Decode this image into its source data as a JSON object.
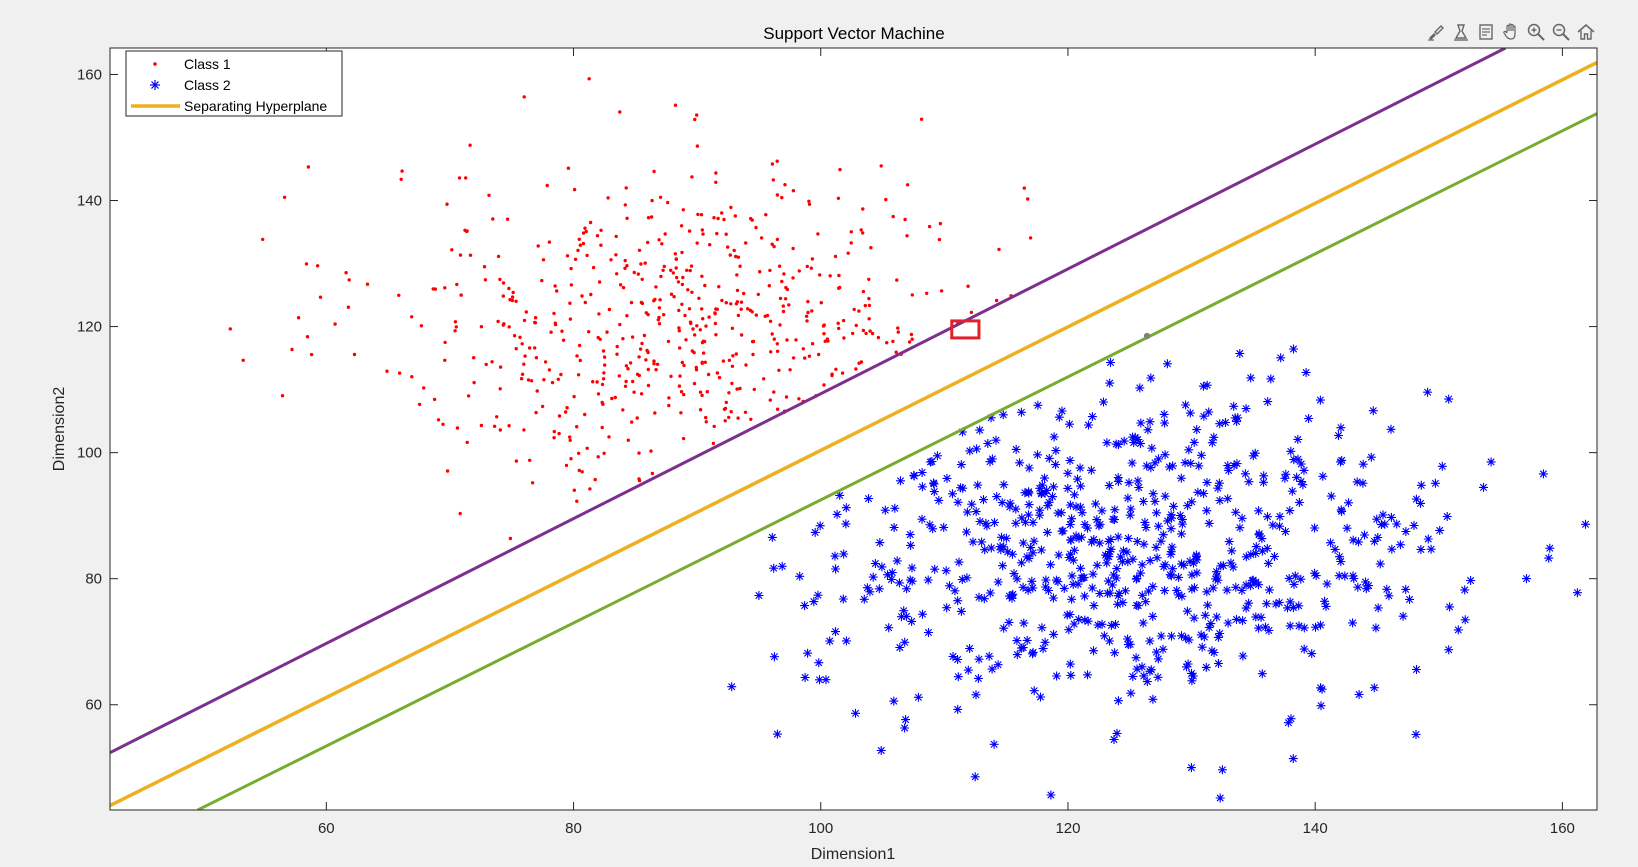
{
  "toolbar": {
    "icons": [
      "brush-icon",
      "data-tips-icon",
      "restore-view-icon",
      "pan-hand-icon",
      "zoom-in-icon",
      "zoom-out-icon",
      "home-icon"
    ]
  },
  "colors": {
    "figure_bg": "#f0f0f0",
    "axes_bg": "#ffffff",
    "class1": "#ff0000",
    "class2": "#0000ff",
    "hyperplane": "#edb120",
    "margin_upper": "#7e2f8e",
    "margin_lower": "#77ac30",
    "highlight_box": "#e0202a"
  },
  "chart_data": {
    "type": "scatter",
    "title": "Support Vector Machine",
    "xlabel": "Dimension1",
    "ylabel": "Dimension2",
    "xlim": [
      42.5,
      162.8
    ],
    "ylim": [
      43.3,
      164.2
    ],
    "xticks": [
      60,
      80,
      100,
      120,
      140,
      160
    ],
    "yticks": [
      60,
      80,
      100,
      120,
      140,
      160
    ],
    "grid": false,
    "legend": {
      "placement": "top-left",
      "entries": [
        {
          "label": "Class 1",
          "marker": "dot",
          "color": "#ff0000"
        },
        {
          "label": "Class 2",
          "marker": "asterisk",
          "color": "#0000ff"
        },
        {
          "label": "Separating Hyperplane",
          "marker": "line",
          "color": "#edb120"
        }
      ]
    },
    "lines": [
      {
        "name": "Separating Hyperplane",
        "role": "hyperplane",
        "color": "#edb120",
        "x": [
          42.5,
          162.8
        ],
        "y": [
          44.0,
          161.9
        ]
      },
      {
        "role": "margin-upper",
        "color": "#7e2f8e",
        "x": [
          42.5,
          155.4
        ],
        "y": [
          52.4,
          164.2
        ]
      },
      {
        "role": "margin-lower",
        "color": "#77ac30",
        "x": [
          49.6,
          162.8
        ],
        "y": [
          43.3,
          153.8
        ]
      }
    ],
    "support_vector_marker": {
      "x": 126.4,
      "y": 118.5,
      "color": "#808080"
    },
    "highlight_box": {
      "x": [
        110.6,
        112.8
      ],
      "y": [
        118.2,
        120.9
      ],
      "color": "#e0202a"
    },
    "class1_distribution": {
      "name": "Class 1",
      "n": 600,
      "mean": [
        90,
        120
      ],
      "std": [
        13,
        13
      ],
      "color": "#ff0000"
    },
    "class2_distribution": {
      "name": "Class 2",
      "n": 720,
      "mean": [
        125,
        85
      ],
      "std": [
        13,
        13
      ],
      "color": "#0000ff"
    }
  }
}
